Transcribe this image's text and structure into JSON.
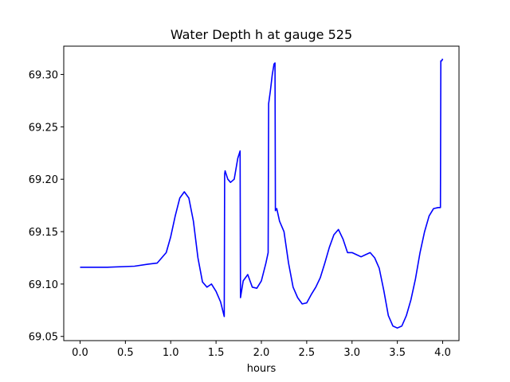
{
  "chart_data": {
    "type": "line",
    "title": "Water Depth h at gauge 525",
    "xlabel": "hours",
    "ylabel": "",
    "xlim": [
      -0.18,
      4.18
    ],
    "ylim": [
      69.046,
      69.327
    ],
    "xticks": [
      0.0,
      0.5,
      1.0,
      1.5,
      2.0,
      2.5,
      3.0,
      3.5,
      4.0
    ],
    "xtick_labels": [
      "0.0",
      "0.5",
      "1.0",
      "1.5",
      "2.0",
      "2.5",
      "3.0",
      "3.5",
      "4.0"
    ],
    "yticks": [
      69.05,
      69.1,
      69.15,
      69.2,
      69.25,
      69.3
    ],
    "ytick_labels": [
      "69.05",
      "69.10",
      "69.15",
      "69.20",
      "69.25",
      "69.30"
    ],
    "grid": false,
    "series": [
      {
        "color": "#0000ff",
        "x": [
          0.0,
          0.3,
          0.6,
          0.75,
          0.85,
          0.95,
          1.0,
          1.05,
          1.1,
          1.15,
          1.2,
          1.25,
          1.3,
          1.35,
          1.4,
          1.45,
          1.5,
          1.55,
          1.59,
          1.595,
          1.6,
          1.63,
          1.66,
          1.7,
          1.74,
          1.765,
          1.77,
          1.8,
          1.85,
          1.9,
          1.95,
          2.0,
          2.05,
          2.075,
          2.08,
          2.1,
          2.12,
          2.14,
          2.15,
          2.155,
          2.17,
          2.2,
          2.25,
          2.3,
          2.35,
          2.4,
          2.45,
          2.5,
          2.55,
          2.6,
          2.65,
          2.7,
          2.75,
          2.8,
          2.85,
          2.9,
          2.95,
          3.0,
          3.05,
          3.1,
          3.15,
          3.2,
          3.25,
          3.3,
          3.35,
          3.4,
          3.45,
          3.5,
          3.55,
          3.6,
          3.65,
          3.7,
          3.75,
          3.8,
          3.85,
          3.9,
          3.95,
          3.975,
          3.98,
          3.99,
          4.0
        ],
        "y": [
          69.116,
          69.116,
          69.117,
          69.119,
          69.12,
          69.13,
          69.145,
          69.165,
          69.182,
          69.188,
          69.182,
          69.16,
          69.125,
          69.102,
          69.097,
          69.1,
          69.093,
          69.083,
          69.069,
          69.205,
          69.208,
          69.2,
          69.197,
          69.2,
          69.22,
          69.227,
          69.087,
          69.103,
          69.109,
          69.097,
          69.096,
          69.103,
          69.12,
          69.13,
          69.272,
          69.285,
          69.3,
          69.31,
          69.311,
          69.17,
          69.172,
          69.16,
          69.15,
          69.12,
          69.097,
          69.087,
          69.081,
          69.082,
          69.09,
          69.097,
          69.106,
          69.12,
          69.135,
          69.147,
          69.152,
          69.143,
          69.13,
          69.13,
          69.128,
          69.126,
          69.128,
          69.13,
          69.125,
          69.115,
          69.094,
          69.07,
          69.06,
          69.058,
          69.06,
          69.07,
          69.085,
          69.105,
          69.13,
          69.15,
          69.165,
          69.172,
          69.173,
          69.173,
          69.313,
          69.313,
          69.315
        ]
      }
    ]
  }
}
